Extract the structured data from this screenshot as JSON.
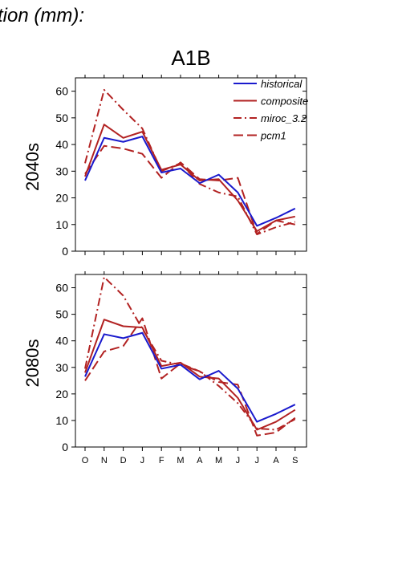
{
  "header_text": "tion (mm):",
  "scenario_title": "A1B",
  "colors": {
    "historical": "#1a1acd",
    "composite": "#b22222",
    "miroc_3.2": "#b22222",
    "pcm1": "#b22222"
  },
  "chart_data": [
    {
      "type": "line",
      "ylabel": "2040s",
      "ylim": [
        0,
        65
      ],
      "yticks": [
        "0",
        "10",
        "20",
        "30",
        "40",
        "50",
        "60"
      ],
      "categories": [
        "O",
        "N",
        "D",
        "J",
        "F",
        "M",
        "A",
        "M",
        "J",
        "J",
        "A",
        "S"
      ],
      "legend": "top-right",
      "series": [
        {
          "name": "historical",
          "style": "solid",
          "color": "#1a1acd",
          "values": [
            26.5,
            42.5,
            41,
            43,
            29.5,
            31,
            25.5,
            28.7,
            22,
            9.5,
            12.5,
            16
          ]
        },
        {
          "name": "composite",
          "style": "solid",
          "color": "#b22222",
          "values": [
            28,
            47.5,
            42.5,
            44.8,
            30.5,
            32.5,
            26.5,
            27,
            19,
            7.5,
            11.5,
            13
          ]
        },
        {
          "name": "miroc_3.2",
          "style": "dashdot",
          "color": "#b22222",
          "values": [
            33,
            60.5,
            53,
            46,
            30,
            33,
            25.2,
            22,
            20.5,
            6.3,
            9,
            11
          ]
        },
        {
          "name": "pcm1",
          "style": "dash",
          "color": "#b22222",
          "values": [
            29,
            39.5,
            38.5,
            36.5,
            27.5,
            33.3,
            27,
            26.5,
            27.5,
            6.5,
            11.5,
            10
          ]
        }
      ]
    },
    {
      "type": "line",
      "ylabel": "2080s",
      "ylim": [
        0,
        65
      ],
      "yticks": [
        "0",
        "10",
        "20",
        "30",
        "40",
        "50",
        "60"
      ],
      "categories": [
        "O",
        "N",
        "D",
        "J",
        "F",
        "M",
        "A",
        "M",
        "J",
        "J",
        "A",
        "S"
      ],
      "series": [
        {
          "name": "historical",
          "style": "solid",
          "color": "#1a1acd",
          "values": [
            26.5,
            42.5,
            41,
            43,
            29.5,
            31,
            25.5,
            28.7,
            22,
            9.5,
            12.5,
            16
          ]
        },
        {
          "name": "composite",
          "style": "solid",
          "color": "#b22222",
          "values": [
            28,
            48,
            45.5,
            45,
            30.5,
            31.8,
            26.5,
            25.8,
            18.5,
            6.5,
            9.5,
            14
          ]
        },
        {
          "name": "miroc_3.2",
          "style": "dashdot",
          "color": "#b22222",
          "values": [
            29.5,
            64,
            57,
            44.5,
            32.5,
            31,
            28.5,
            23,
            16.5,
            7,
            6.5,
            10.5
          ]
        },
        {
          "name": "pcm1",
          "style": "dash",
          "color": "#b22222",
          "values": [
            25,
            36,
            38,
            48.5,
            25.8,
            31.5,
            28.5,
            24.5,
            23.5,
            4.3,
            5.5,
            11
          ]
        }
      ]
    }
  ]
}
